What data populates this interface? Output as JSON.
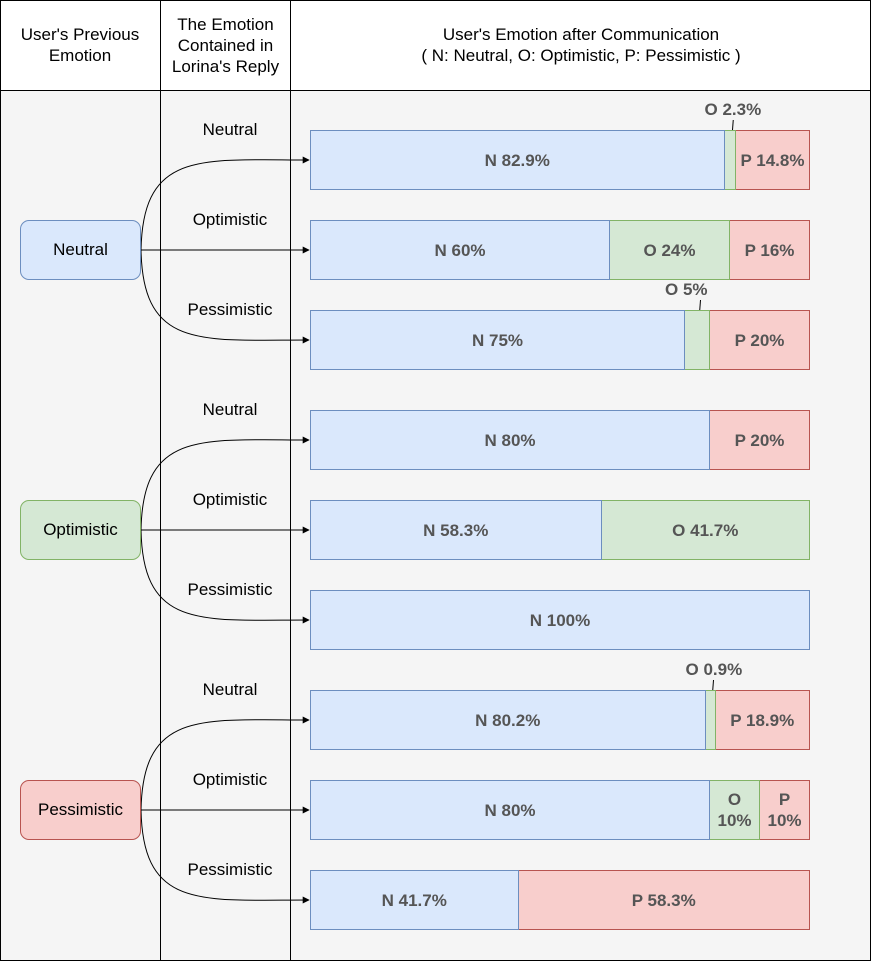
{
  "header": {
    "col_previous": "User's Previous Emotion",
    "col_reply": "The Emotion Contained in Lorina's Reply",
    "col_after_title": "User's Emotion after Communication",
    "col_after_legend": "( N: Neutral, O: Optimistic, P: Pessimistic )"
  },
  "states": [
    {
      "label": "Neutral",
      "fill": "#dae8fc",
      "stroke": "#6c8ebf"
    },
    {
      "label": "Optimistic",
      "fill": "#d5e8d4",
      "stroke": "#82b366"
    },
    {
      "label": "Pessimistic",
      "fill": "#f8cecc",
      "stroke": "#b85450"
    }
  ],
  "reply_labels": [
    "Neutral",
    "Optimistic",
    "Pessimistic"
  ],
  "colors": {
    "neutral": "#dae8fc",
    "optimistic": "#d5e8d4",
    "pessimistic": "#f8cecc",
    "text": "#555555",
    "background": "#f5f5f5"
  },
  "rows": [
    {
      "segments": [
        {
          "type": "N",
          "value": 82.9,
          "label": "N 82.9%"
        },
        {
          "type": "O",
          "value": 2.3,
          "label": "O 2.3%",
          "callout": true
        },
        {
          "type": "P",
          "value": 14.8,
          "label": "P 14.8%"
        }
      ]
    },
    {
      "segments": [
        {
          "type": "N",
          "value": 60,
          "label": "N 60%"
        },
        {
          "type": "O",
          "value": 24,
          "label": "O 24%"
        },
        {
          "type": "P",
          "value": 16,
          "label": "P 16%"
        }
      ]
    },
    {
      "segments": [
        {
          "type": "N",
          "value": 75,
          "label": "N 75%"
        },
        {
          "type": "O",
          "value": 5,
          "label": "O 5%",
          "callout": true
        },
        {
          "type": "P",
          "value": 20,
          "label": "P 20%"
        }
      ]
    },
    {
      "segments": [
        {
          "type": "N",
          "value": 80,
          "label": "N 80%"
        },
        {
          "type": "P",
          "value": 20,
          "label": "P 20%"
        }
      ]
    },
    {
      "segments": [
        {
          "type": "N",
          "value": 58.3,
          "label": "N 58.3%"
        },
        {
          "type": "O",
          "value": 41.7,
          "label": "O 41.7%"
        }
      ]
    },
    {
      "segments": [
        {
          "type": "N",
          "value": 100,
          "label": "N 100%"
        }
      ]
    },
    {
      "segments": [
        {
          "type": "N",
          "value": 80.2,
          "label": "N 80.2%"
        },
        {
          "type": "O",
          "value": 0.9,
          "label": "O 0.9%",
          "callout": true
        },
        {
          "type": "P",
          "value": 18.9,
          "label": "P 18.9%"
        }
      ]
    },
    {
      "segments": [
        {
          "type": "N",
          "value": 80,
          "label": "N 80%"
        },
        {
          "type": "O",
          "value": 10,
          "label": "O 10%"
        },
        {
          "type": "P",
          "value": 10,
          "label": "P 10%"
        }
      ]
    },
    {
      "segments": [
        {
          "type": "N",
          "value": 41.7,
          "label": "N 41.7%"
        },
        {
          "type": "P",
          "value": 58.3,
          "label": "P 58.3%"
        }
      ]
    }
  ]
}
